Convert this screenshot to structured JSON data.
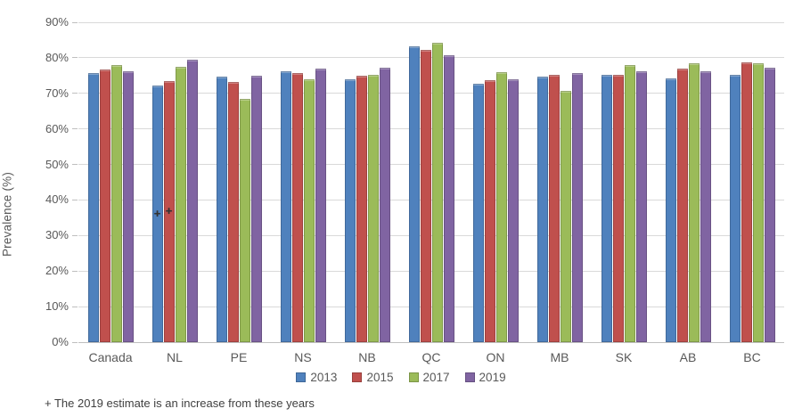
{
  "footnote": "+ The 2019 estimate is an increase from these years",
  "chart_data": {
    "type": "bar",
    "title": "",
    "xlabel": "",
    "ylabel": "Prevalence (%)",
    "ylim": [
      0,
      90
    ],
    "ytick_step": 10,
    "ytick_labels": [
      "0%",
      "10%",
      "20%",
      "30%",
      "40%",
      "50%",
      "60%",
      "70%",
      "80%",
      "90%"
    ],
    "grid": true,
    "legend_position": "bottom",
    "categories": [
      "Canada",
      "NL",
      "PE",
      "NS",
      "NB",
      "QC",
      "ON",
      "MB",
      "SK",
      "AB",
      "BC"
    ],
    "series": [
      {
        "name": "2013",
        "color": "#4F81BD",
        "values": [
          75.6,
          72.3,
          74.6,
          76.1,
          73.9,
          83.2,
          72.7,
          74.7,
          75.3,
          74.3,
          75.3
        ]
      },
      {
        "name": "2015",
        "color": "#C0504D",
        "values": [
          76.7,
          73.5,
          73.2,
          75.7,
          75.0,
          82.2,
          73.8,
          75.2,
          75.3,
          77.0,
          78.8
        ]
      },
      {
        "name": "2017",
        "color": "#9BBB59",
        "values": [
          78.1,
          77.5,
          68.5,
          74.0,
          75.3,
          84.3,
          75.9,
          70.8,
          78.0,
          78.5,
          78.5
        ]
      },
      {
        "name": "2019",
        "color": "#8064A2",
        "values": [
          76.3,
          79.6,
          75.0,
          76.9,
          77.2,
          80.8,
          73.9,
          75.6,
          76.3,
          76.3,
          77.2
        ]
      }
    ],
    "annotations": [
      {
        "symbol": "+",
        "category": "NL",
        "series": "2013"
      },
      {
        "symbol": "+",
        "category": "NL",
        "series": "2015"
      }
    ]
  }
}
